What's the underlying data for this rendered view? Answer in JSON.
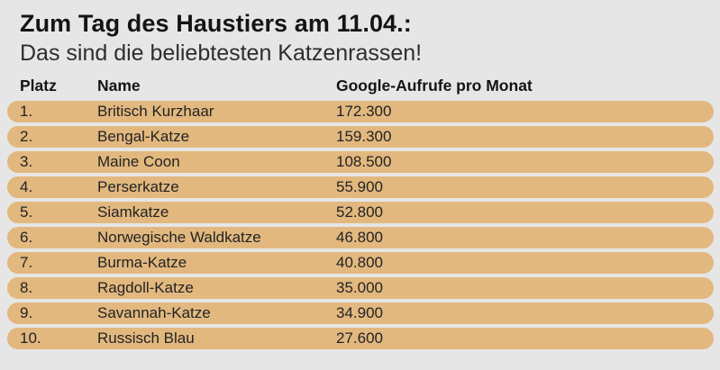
{
  "page": {
    "title": "Zum Tag des Haustiers am 11.04.:",
    "subtitle": "Das sind die beliebtesten Katzenrassen!"
  },
  "table": {
    "headers": {
      "rank": "Platz",
      "name": "Name",
      "value": "Google-Aufrufe pro Monat"
    },
    "rows": [
      {
        "rank": "1.",
        "name": "Britisch Kurzhaar",
        "value": "172.300"
      },
      {
        "rank": "2.",
        "name": "Bengal-Katze",
        "value": "159.300"
      },
      {
        "rank": "3.",
        "name": "Maine Coon",
        "value": "108.500"
      },
      {
        "rank": "4.",
        "name": "Perserkatze",
        "value": "55.900"
      },
      {
        "rank": "5.",
        "name": "Siamkatze",
        "value": "52.800"
      },
      {
        "rank": "6.",
        "name": "Norwegische Waldkatze",
        "value": "46.800"
      },
      {
        "rank": "7.",
        "name": "Burma-Katze",
        "value": "40.800"
      },
      {
        "rank": "8.",
        "name": "Ragdoll-Katze",
        "value": "35.000"
      },
      {
        "rank": "9.",
        "name": "Savannah-Katze",
        "value": "34.900"
      },
      {
        "rank": "10.",
        "name": "Russisch Blau",
        "value": "27.600"
      }
    ]
  },
  "colors": {
    "background": "#e6e6e6",
    "row_fill": "#e2b87f",
    "title_text": "#141414",
    "body_text": "#232323"
  },
  "chart_data": {
    "type": "table",
    "title": "Zum Tag des Haustiers am 11.04.: Das sind die beliebtesten Katzenrassen!",
    "columns": [
      "Platz",
      "Name",
      "Google-Aufrufe pro Monat"
    ],
    "categories": [
      "Britisch Kurzhaar",
      "Bengal-Katze",
      "Maine Coon",
      "Perserkatze",
      "Siamkatze",
      "Norwegische Waldkatze",
      "Burma-Katze",
      "Ragdoll-Katze",
      "Savannah-Katze",
      "Russisch Blau"
    ],
    "values": [
      172300,
      159300,
      108500,
      55900,
      52800,
      46800,
      40800,
      35000,
      34900,
      27600
    ],
    "ranks": [
      1,
      2,
      3,
      4,
      5,
      6,
      7,
      8,
      9,
      10
    ],
    "value_label": "Google-Aufrufe pro Monat",
    "layout": "horizontal ranking list, full-width pill rows, no axes, no legend"
  }
}
